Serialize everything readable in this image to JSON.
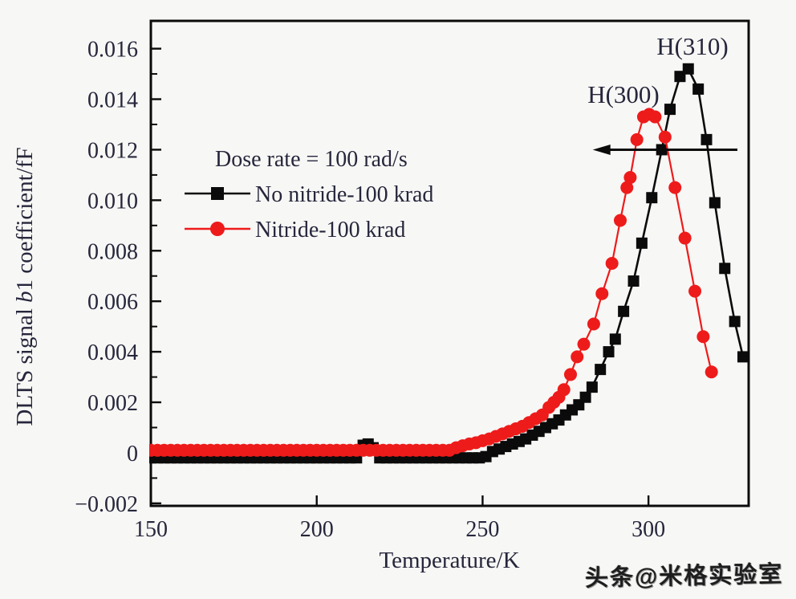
{
  "page": {
    "watermark": "头条@米格实验室"
  },
  "chart_data": {
    "type": "line",
    "title": "",
    "xlabel": "Temperature/K",
    "ylabel": {
      "prefix": "DLTS signal ",
      "italic": "b",
      "suffix": "1 coefficient/fF"
    },
    "xlim": [
      150,
      330.2
    ],
    "ylim": [
      -0.0021,
      0.0171
    ],
    "grid": false,
    "xticks": [
      {
        "v": 150,
        "label": "150"
      },
      {
        "v": 200,
        "label": "200"
      },
      {
        "v": 250,
        "label": "250"
      },
      {
        "v": 300,
        "label": "300"
      }
    ],
    "yticks": [
      {
        "v": -0.002,
        "label": "−0.002"
      },
      {
        "v": 0,
        "label": "0"
      },
      {
        "v": 0.002,
        "label": "0.002"
      },
      {
        "v": 0.004,
        "label": "0.004"
      },
      {
        "v": 0.006,
        "label": "0.006"
      },
      {
        "v": 0.008,
        "label": "0.008"
      },
      {
        "v": 0.01,
        "label": "0.010"
      },
      {
        "v": 0.012,
        "label": "0.012"
      },
      {
        "v": 0.014,
        "label": "0.014"
      },
      {
        "v": 0.016,
        "label": "0.016"
      }
    ],
    "y_minor_ticks": [
      -0.001,
      0.001,
      0.003,
      0.005,
      0.007,
      0.009,
      0.011,
      0.013,
      0.015
    ],
    "legend": {
      "position": "upper-left-inside",
      "title": "Dose rate = 100 rad/s",
      "entries": [
        {
          "label": "No nitride-100 krad",
          "series": 0
        },
        {
          "label": "Nitride-100 krad",
          "series": 1
        }
      ]
    },
    "annotations": [
      {
        "type": "text",
        "text": "H(310)",
        "x": 313.2,
        "y": 0.0163
      },
      {
        "type": "text",
        "text": "H(300)",
        "x": 292.5,
        "y": 0.0144
      },
      {
        "type": "arrow",
        "y": 0.012,
        "x_tail": 326.8,
        "x_head": 283.2,
        "direction": "left"
      }
    ],
    "series": [
      {
        "name": "No nitride-100 krad",
        "color": "#0b0b0b",
        "marker": "square",
        "marker_size": 14,
        "line_width": 2.6,
        "x": [
          150,
          152,
          154,
          156,
          158,
          160,
          162,
          164,
          166,
          168,
          170,
          172,
          174,
          176,
          178,
          180,
          182,
          184,
          186,
          188,
          190,
          192,
          194,
          196,
          198,
          200,
          202,
          204,
          206,
          208,
          210,
          212,
          214,
          215.5,
          217,
          219,
          221,
          223,
          225,
          227,
          229,
          231,
          233,
          235,
          237,
          239,
          241,
          243,
          245,
          247,
          249,
          251,
          253,
          255,
          257,
          259,
          261,
          263,
          265,
          267,
          269,
          271,
          273,
          275,
          277,
          279,
          281,
          283,
          285.5,
          288,
          290,
          292.5,
          295.5,
          298,
          301,
          304,
          306.5,
          309.5,
          312,
          315,
          317.5,
          320,
          323,
          326,
          328.5
        ],
        "y": [
          -0.0002,
          -0.0002,
          -0.0002,
          -0.0002,
          -0.0002,
          -0.0002,
          -0.0002,
          -0.0002,
          -0.0002,
          -0.0002,
          -0.0002,
          -0.0002,
          -0.0002,
          -0.0002,
          -0.0002,
          -0.0002,
          -0.0002,
          -0.0002,
          -0.0002,
          -0.0002,
          -0.0002,
          -0.0002,
          -0.0002,
          -0.0002,
          -0.0002,
          -0.0002,
          -0.0002,
          -0.0002,
          -0.0002,
          -0.0002,
          -0.0002,
          -0.0002,
          0.0003,
          0.00035,
          0.0002,
          -0.0002,
          -0.0002,
          -0.0002,
          -0.0002,
          -0.0002,
          -0.0002,
          -0.0002,
          -0.0002,
          -0.0002,
          -0.0002,
          -0.0002,
          -0.0002,
          -0.0002,
          -0.0002,
          -0.0002,
          -0.0002,
          -0.00015,
          5e-05,
          0.00015,
          0.00025,
          0.00035,
          0.00045,
          0.00055,
          0.0007,
          0.00085,
          0.001,
          0.00115,
          0.0013,
          0.0015,
          0.0017,
          0.0019,
          0.0022,
          0.0026,
          0.0033,
          0.004,
          0.0045,
          0.0056,
          0.0068,
          0.0083,
          0.0101,
          0.012,
          0.0136,
          0.0149,
          0.0152,
          0.0144,
          0.0124,
          0.0099,
          0.0073,
          0.0052,
          0.0038
        ]
      },
      {
        "name": "Nitride-100 krad",
        "color": "#ee1b1b",
        "marker": "circle",
        "marker_size": 16,
        "line_width": 2.2,
        "x": [
          150,
          152,
          154,
          156,
          158,
          160,
          162,
          164,
          166,
          168,
          170,
          172,
          174,
          176,
          178,
          180,
          182,
          184,
          186,
          188,
          190,
          192,
          194,
          196,
          198,
          200,
          202,
          204,
          206,
          208,
          210,
          212,
          214,
          216,
          218,
          220,
          222,
          224,
          226,
          228,
          230,
          232,
          234,
          236,
          238,
          240,
          242,
          244,
          246,
          248,
          250,
          252,
          254,
          256,
          258,
          260,
          262,
          264,
          266,
          268,
          270,
          271.5,
          273,
          274.5,
          276.5,
          278.5,
          280.5,
          283.5,
          286,
          289,
          291.5,
          293.5,
          294.5,
          296.5,
          298.5,
          300.2,
          302,
          305,
          308,
          311,
          314,
          316.5,
          319
        ],
        "y": [
          0.0001,
          0.0001,
          0.0001,
          0.0001,
          0.0001,
          0.0001,
          0.0001,
          0.0001,
          0.0001,
          0.0001,
          0.0001,
          0.0001,
          0.0001,
          0.0001,
          0.0001,
          0.0001,
          0.0001,
          0.0001,
          0.0001,
          0.0001,
          0.0001,
          0.0001,
          0.0001,
          0.0001,
          0.0001,
          0.0001,
          0.0001,
          0.0001,
          0.0001,
          0.0001,
          0.0001,
          0.0001,
          0.0001,
          0.0001,
          0.0001,
          0.0001,
          0.0001,
          0.0001,
          0.0001,
          0.0001,
          0.0001,
          0.0001,
          0.0001,
          0.0001,
          0.0001,
          0.0001,
          0.0002,
          0.00028,
          0.00035,
          0.0004,
          0.00048,
          0.00055,
          0.00065,
          0.00075,
          0.00085,
          0.00095,
          0.00105,
          0.0012,
          0.00135,
          0.0015,
          0.0018,
          0.002,
          0.0022,
          0.0025,
          0.0031,
          0.0038,
          0.0043,
          0.0051,
          0.0063,
          0.0075,
          0.0092,
          0.0105,
          0.0109,
          0.0124,
          0.0133,
          0.0134,
          0.0133,
          0.0125,
          0.0105,
          0.0085,
          0.0064,
          0.0046,
          0.0032
        ]
      }
    ]
  }
}
